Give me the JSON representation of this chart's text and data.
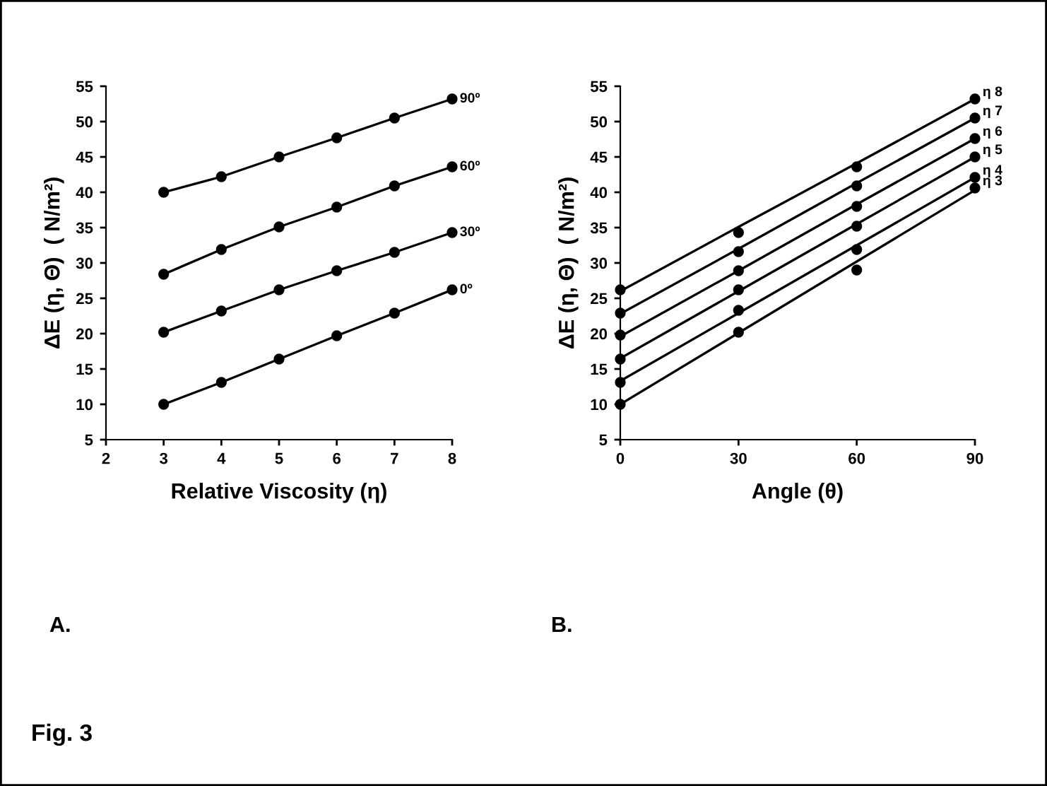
{
  "chart_data": [
    {
      "type": "line",
      "xlabel": "Relative Viscosity (η)",
      "ylabel": "ΔE (η, Θ)  ( N/m²)",
      "x": [
        3,
        4,
        5,
        6,
        7,
        8
      ],
      "xlim": [
        2,
        8
      ],
      "xticks": [
        2,
        3,
        4,
        5,
        6,
        7,
        8
      ],
      "ylim": [
        5,
        55
      ],
      "yticks": [
        5,
        10,
        15,
        20,
        25,
        30,
        35,
        40,
        45,
        50,
        55
      ],
      "marker": "circle",
      "line_style": "solid",
      "grid": false,
      "legend": false,
      "annotations": [
        "A."
      ],
      "series": [
        {
          "name": "0º",
          "color": "#000000",
          "values": [
            10,
            13.1,
            16.4,
            19.7,
            22.9,
            26.2
          ]
        },
        {
          "name": "30º",
          "color": "#000000",
          "values": [
            20.2,
            23.2,
            26.2,
            28.9,
            31.5,
            34.3
          ]
        },
        {
          "name": "60º",
          "color": "#000000",
          "values": [
            28.4,
            31.9,
            35.1,
            37.9,
            40.9,
            43.6
          ]
        },
        {
          "name": "90º",
          "color": "#000000",
          "values": [
            40,
            42.2,
            45,
            47.7,
            50.5,
            53.2
          ]
        }
      ]
    },
    {
      "type": "scatter",
      "xlabel": "Angle (θ)",
      "ylabel": "ΔE (η, Θ)  ( N/m²)",
      "x": [
        0,
        30,
        60,
        90
      ],
      "xlim": [
        0,
        90
      ],
      "xticks": [
        0,
        30,
        60,
        90
      ],
      "ylim": [
        5,
        55
      ],
      "yticks": [
        5,
        10,
        15,
        20,
        25,
        30,
        35,
        40,
        45,
        50,
        55
      ],
      "marker": "circle",
      "grid": false,
      "legend": false,
      "annotations": [
        "B.",
        "Fig. 3"
      ],
      "series": [
        {
          "name": "η 3",
          "color": "#000000",
          "values": [
            10,
            20.2,
            29,
            40.6
          ]
        },
        {
          "name": "η 4",
          "color": "#000000",
          "values": [
            13.1,
            23.3,
            31.9,
            42.1
          ]
        },
        {
          "name": "η 5",
          "color": "#000000",
          "values": [
            16.4,
            26.2,
            35.2,
            45
          ]
        },
        {
          "name": "η 6",
          "color": "#000000",
          "values": [
            19.8,
            28.9,
            38,
            47.6
          ]
        },
        {
          "name": "η 7",
          "color": "#000000",
          "values": [
            22.9,
            31.6,
            40.9,
            50.5
          ]
        },
        {
          "name": "η 8",
          "color": "#000000",
          "values": [
            26.2,
            34.3,
            43.6,
            53.2
          ]
        },
        {
          "type": "line",
          "color": "#000000",
          "values": [
            10,
            20.1,
            30.2,
            40.3
          ],
          "line_style": "solid",
          "marker": "none"
        },
        {
          "type": "line",
          "color": "#000000",
          "values": [
            13.3,
            22.9,
            32.5,
            42.1
          ],
          "line_style": "solid",
          "marker": "none"
        },
        {
          "type": "line",
          "color": "#000000",
          "values": [
            16.5,
            26,
            35.5,
            45
          ],
          "line_style": "solid",
          "marker": "none"
        },
        {
          "type": "line",
          "color": "#000000",
          "values": [
            19.6,
            28.9,
            38.3,
            47.6
          ],
          "line_style": "solid",
          "marker": "none"
        },
        {
          "type": "line",
          "color": "#000000",
          "values": [
            22.8,
            32,
            41.3,
            50.5
          ],
          "line_style": "solid",
          "marker": "none"
        },
        {
          "type": "line",
          "color": "#000000",
          "values": [
            26,
            35.1,
            44.1,
            53.2
          ],
          "line_style": "solid",
          "marker": "none"
        }
      ]
    }
  ]
}
